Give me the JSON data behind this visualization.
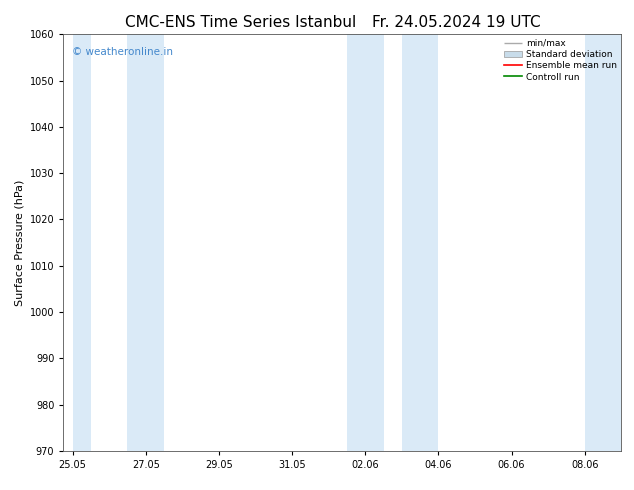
{
  "title": "CMC-ENS Time Series Istanbul",
  "title_right": "Fr. 24.05.2024 19 UTC",
  "ylabel": "Surface Pressure (hPa)",
  "watermark": "© weatheronline.in",
  "watermark_color": "#4488cc",
  "ylim": [
    970,
    1060
  ],
  "yticks": [
    970,
    980,
    990,
    1000,
    1010,
    1020,
    1030,
    1040,
    1050,
    1060
  ],
  "shaded_band_color": "#daeaf7",
  "shaded_band_alpha": 1.0,
  "background_color": "#ffffff",
  "plot_bg_color": "#ffffff",
  "legend_items": [
    "min/max",
    "Standard deviation",
    "Ensemble mean run",
    "Controll run"
  ],
  "legend_colors_handle": [
    "#aaaaaa",
    "#c8dcea",
    "#ff0000",
    "#008800"
  ],
  "title_fontsize": 11,
  "tick_label_fontsize": 7,
  "ylabel_fontsize": 8,
  "x_tick_labels": [
    "25.05",
    "27.05",
    "29.05",
    "31.05",
    "02.06",
    "04.06",
    "06.06",
    "08.06"
  ],
  "x_tick_positions": [
    0.0,
    2.0,
    4.0,
    6.0,
    8.0,
    10.0,
    12.0,
    14.0
  ],
  "xlim": [
    -0.25,
    15.0
  ],
  "total_days": 14.75,
  "shaded_ranges": [
    [
      0.0,
      0.5
    ],
    [
      1.5,
      2.5
    ],
    [
      7.5,
      8.5
    ],
    [
      9.0,
      10.0
    ],
    [
      14.0,
      15.0
    ]
  ]
}
